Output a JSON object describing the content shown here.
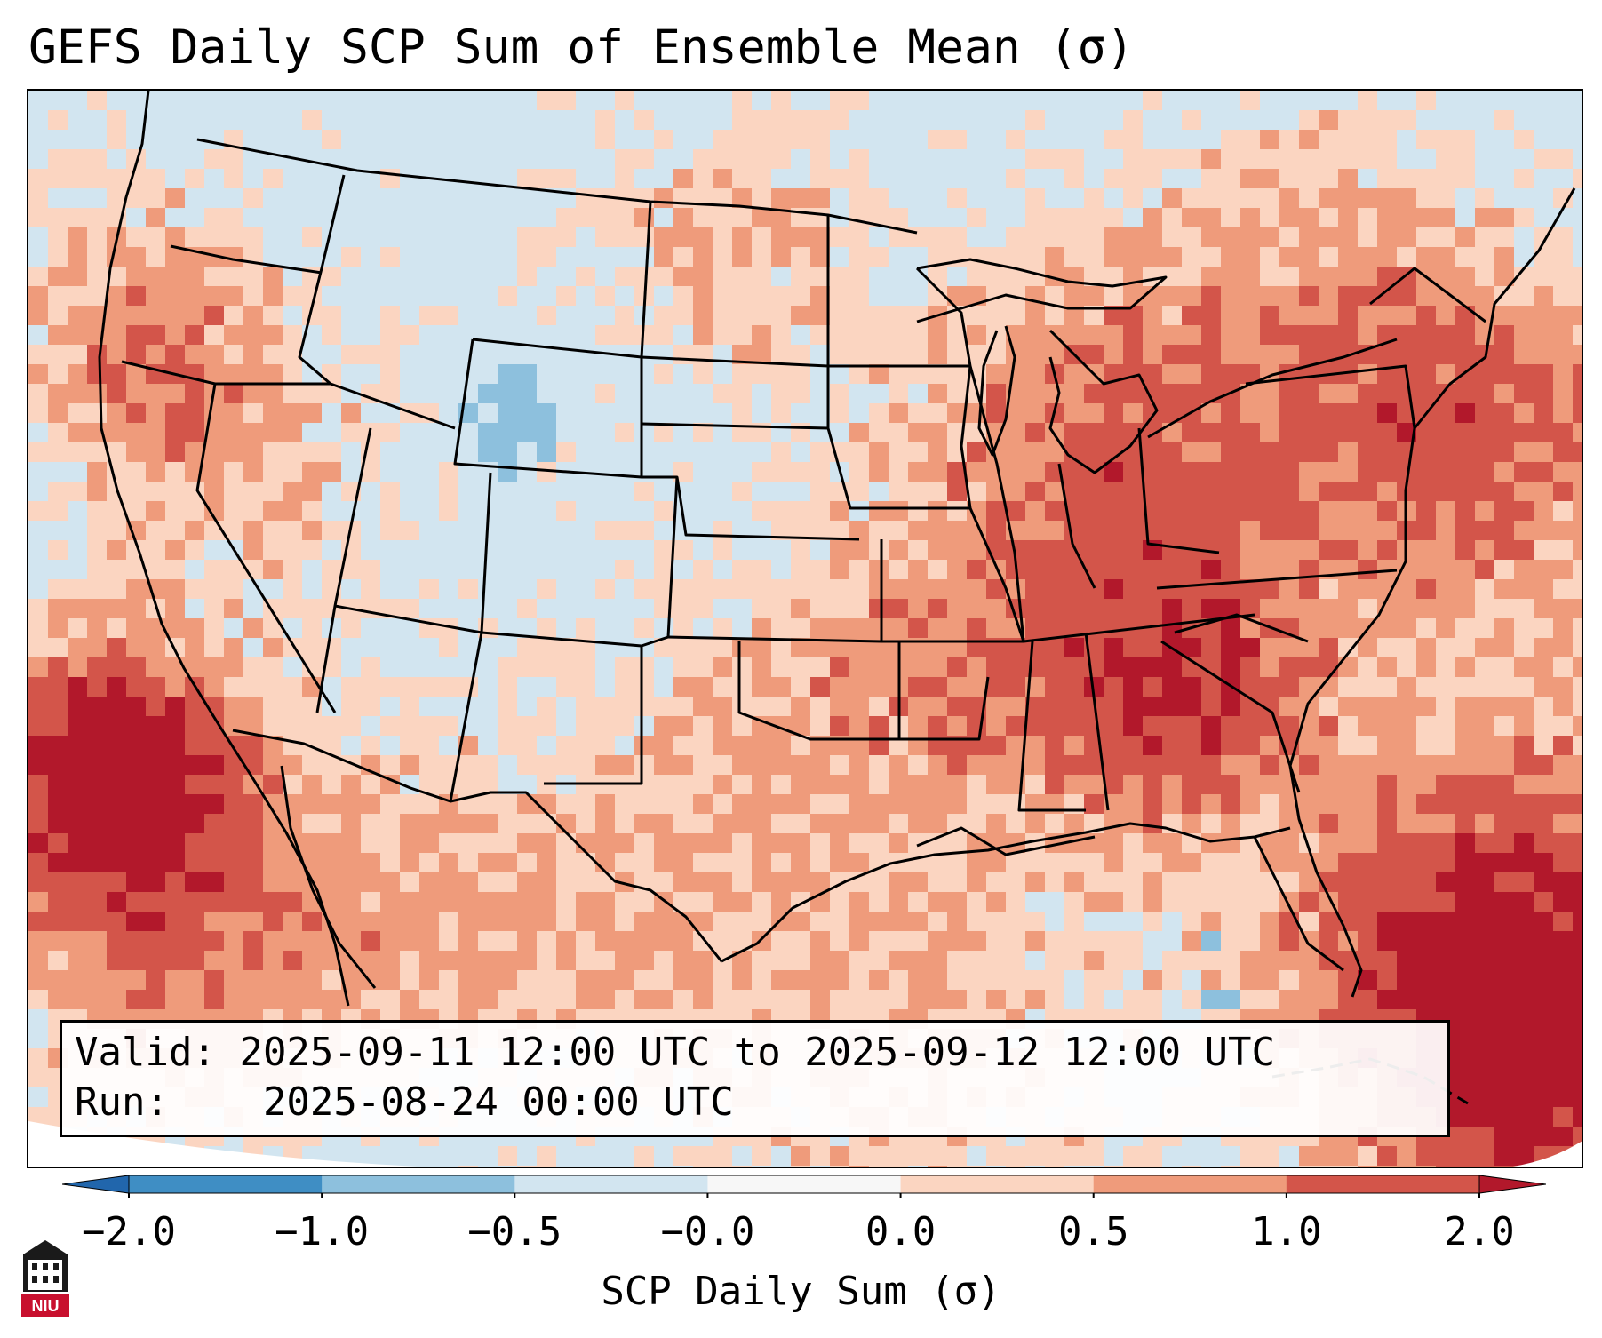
{
  "title": "GEFS Daily SCP Sum of Ensemble Mean (σ)",
  "info": {
    "valid_label": "Valid:",
    "valid_value": "2025-09-11 12:00 UTC to 2025-09-12 12:00 UTC",
    "run_label": "Run:",
    "run_value": "2025-08-24 00:00 UTC"
  },
  "colorbar": {
    "label": "SCP Daily Sum (σ)",
    "ticks": [
      "−2.0",
      "−1.0",
      "−0.5",
      "−0.0",
      "0.0",
      "0.5",
      "1.0",
      "2.0"
    ],
    "colors": [
      "#3f8ec4",
      "#8dc0dd",
      "#d2e5f0",
      "#f7f7f7",
      "#fbd5c1",
      "#ef9b7b",
      "#d3554a"
    ],
    "under_color": "#2166ac",
    "over_color": "#b2182b"
  },
  "map": {
    "ocean_color": "#d2e5f0",
    "field_colors": {
      "neg_light": "#d2e5f0",
      "neg_mid": "#8dc0dd",
      "pos_light": "#fbd5c1",
      "pos_mid": "#ef9b7b",
      "pos_high": "#d3554a",
      "pos_max": "#b2182b"
    }
  },
  "logo": {
    "text": "NIU",
    "color": "#c8102e"
  }
}
